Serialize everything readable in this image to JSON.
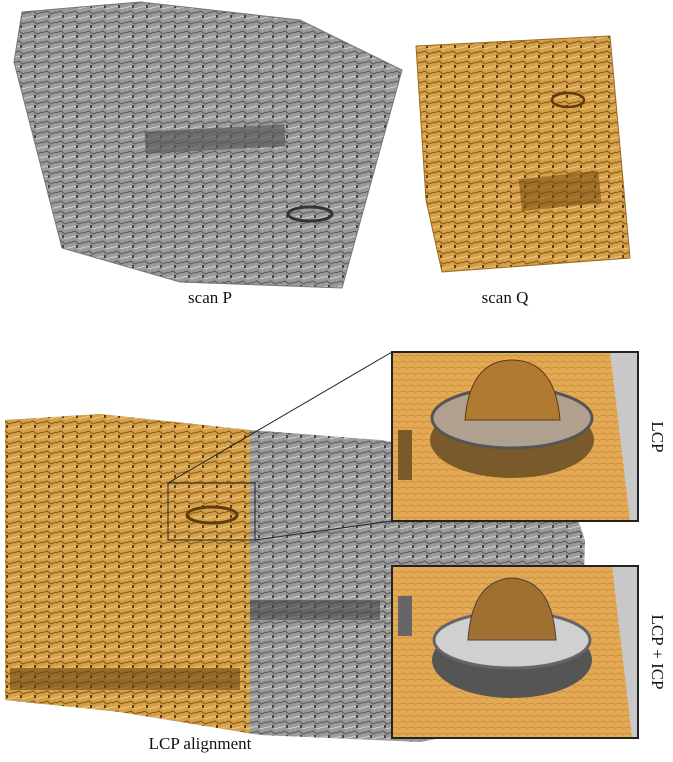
{
  "figure": {
    "top": {
      "left_label": "scan P",
      "right_label": "scan Q"
    },
    "bottom": {
      "label": "LCP alignment",
      "inset_top_label": "LCP",
      "inset_bottom_label": "LCP + ICP"
    }
  }
}
